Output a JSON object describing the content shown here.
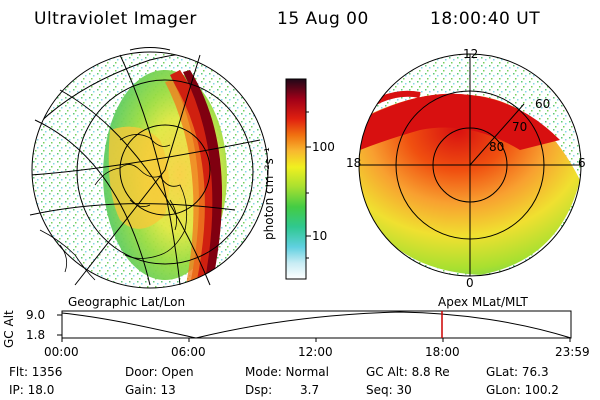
{
  "header": {
    "instrument": "Ultraviolet Imager",
    "date": "15 Aug 00",
    "time": "18:00:40 UT"
  },
  "colorbar": {
    "unit_label": "photon cm⁻²s⁻¹",
    "ticks": [
      "100",
      "10"
    ]
  },
  "left_map": {
    "caption": "Geographic Lat/Lon"
  },
  "right_map": {
    "caption": "Apex MLat/MLT",
    "mlt_labels": [
      "12",
      "18",
      "6",
      "0"
    ],
    "mlat_labels": [
      "60",
      "70",
      "80"
    ]
  },
  "timeline": {
    "ylabel": "GC Alt",
    "yticks": [
      "9.0",
      "1.8"
    ],
    "xticks": [
      "00:00",
      "06:00",
      "12:00",
      "18:00",
      "23:59"
    ],
    "marker_time": "18:00",
    "marker_color": "#cc0000"
  },
  "footer": {
    "flt": "Flt: 1356",
    "ip": "IP: 18.0",
    "door": "Door: Open",
    "gain": "Gain: 13",
    "mode": "Mode: Normal",
    "dsp_label": "Dsp:",
    "dsp_value": "3.7",
    "gcalt": "GC Alt: 8.8 Re",
    "seq": "Seq: 30",
    "glat": "GLat: 76.3",
    "glon": "GLon: 100.2"
  },
  "colors": {
    "bg": "#ffffff",
    "line": "#000000",
    "scale": [
      "#ffffff",
      "#7ec8e3",
      "#30c8a0",
      "#44cc44",
      "#a8e030",
      "#f0f020",
      "#f8c030",
      "#f07010",
      "#e02010",
      "#a00010",
      "#300818"
    ]
  }
}
